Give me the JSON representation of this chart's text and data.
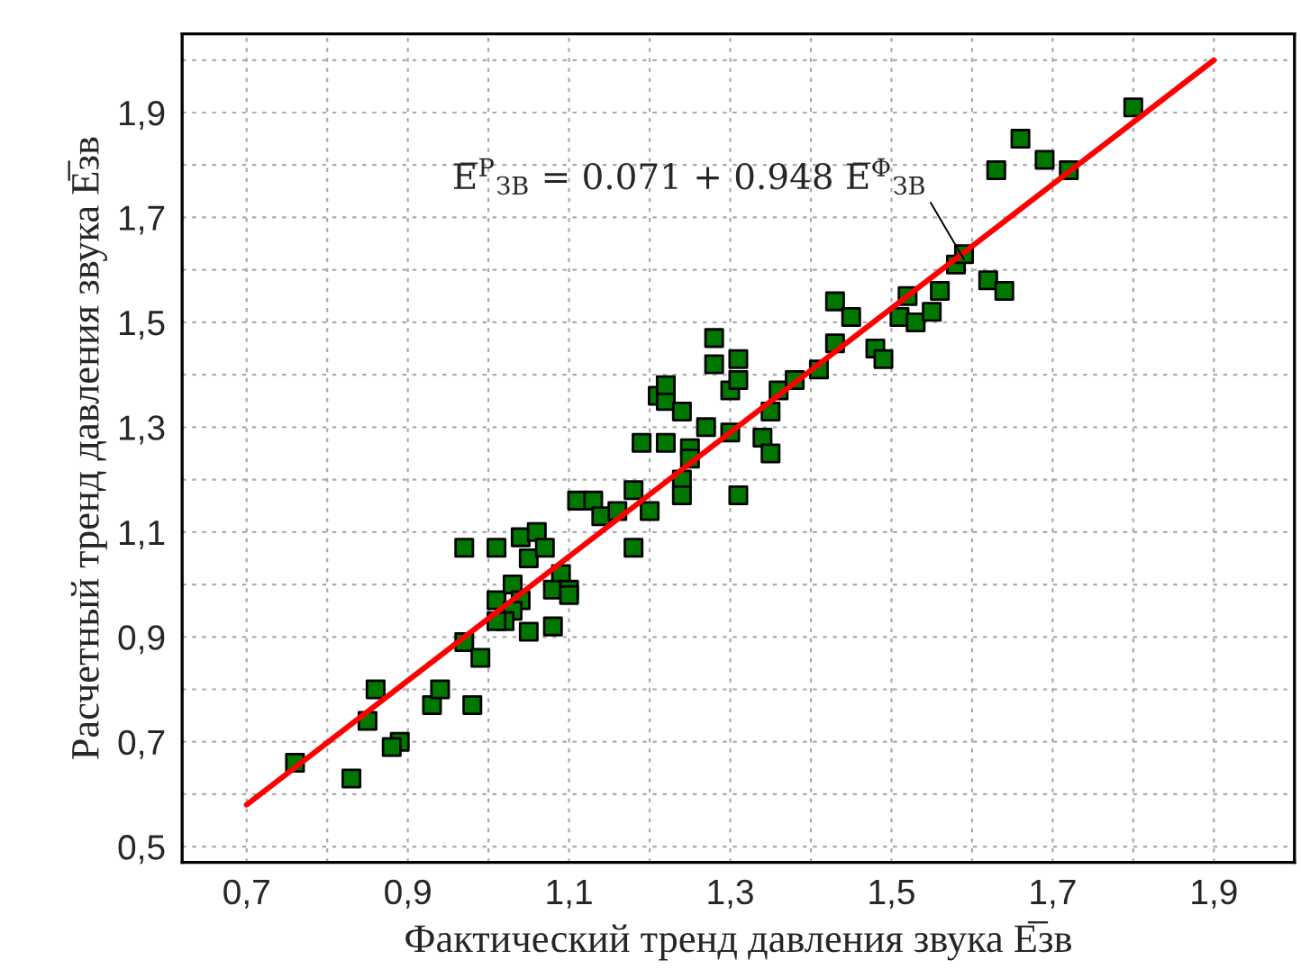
{
  "chart_data": {
    "type": "scatter",
    "xlabel": "Фактический тренд давления звука E̅зв",
    "ylabel": "Расчетный тренд давления звука E̅зв",
    "annotations": [
      {
        "text": "E̅$^{Р}$$_{ЗВ}$ = 0.071 + 0.948 E̅$^{Ф}$$_{ЗВ}$",
        "x": 1.59,
        "y": 1.62
      }
    ],
    "series": [
      {
        "color": "#007800",
        "marker": "square",
        "x": [
          0.76,
          0.83,
          0.85,
          0.86,
          0.89,
          0.88,
          0.93,
          0.94,
          0.98,
          0.97,
          0.99,
          0.97,
          1.01,
          1.04,
          1.06,
          1.05,
          1.07,
          1.09,
          1.08,
          1.1,
          1.1,
          1.01,
          1.03,
          1.04,
          1.03,
          1.02,
          1.01,
          1.05,
          1.08,
          1.11,
          1.13,
          1.14,
          1.16,
          1.18,
          1.2,
          1.18,
          1.19,
          1.22,
          1.21,
          1.22,
          1.22,
          1.24,
          1.25,
          1.25,
          1.24,
          1.24,
          1.27,
          1.3,
          1.31,
          1.28,
          1.28,
          1.3,
          1.31,
          1.31,
          1.34,
          1.35,
          1.35,
          1.36,
          1.38,
          1.41,
          1.43,
          1.45,
          1.43,
          1.48,
          1.49,
          1.51,
          1.52,
          1.53,
          1.55,
          1.56,
          1.58,
          1.59,
          1.62,
          1.64,
          1.63,
          1.66,
          1.69,
          1.72,
          1.8
        ],
        "values": [
          0.66,
          0.63,
          0.74,
          0.8,
          0.7,
          0.69,
          0.77,
          0.8,
          0.77,
          0.89,
          0.86,
          1.07,
          1.07,
          1.09,
          1.1,
          1.05,
          1.07,
          1.02,
          0.99,
          0.99,
          0.98,
          0.97,
          1.0,
          0.97,
          0.95,
          0.93,
          0.93,
          0.91,
          0.92,
          1.16,
          1.16,
          1.13,
          1.14,
          1.18,
          1.14,
          1.07,
          1.27,
          1.27,
          1.36,
          1.35,
          1.38,
          1.33,
          1.26,
          1.24,
          1.2,
          1.17,
          1.3,
          1.29,
          1.17,
          1.47,
          1.42,
          1.37,
          1.43,
          1.39,
          1.28,
          1.25,
          1.33,
          1.37,
          1.39,
          1.41,
          1.54,
          1.51,
          1.46,
          1.45,
          1.43,
          1.51,
          1.55,
          1.5,
          1.52,
          1.56,
          1.61,
          1.63,
          1.58,
          1.56,
          1.79,
          1.85,
          1.81,
          1.79,
          1.91
        ]
      },
      {
        "type": "line",
        "color": "#ff0000",
        "marker": "none",
        "x": [
          0.7,
          1.9
        ],
        "values": [
          0.58,
          2.0
        ]
      }
    ],
    "xlim": [
      0.62,
      2.0
    ],
    "ylim": [
      0.47,
      2.05
    ],
    "xticks": [
      {
        "value": 0.7,
        "label": "0,7"
      },
      {
        "value": 0.8,
        "label": null
      },
      {
        "value": 0.9,
        "label": "0,9"
      },
      {
        "value": 1.0,
        "label": null
      },
      {
        "value": 1.1,
        "label": "1,1"
      },
      {
        "value": 1.2,
        "label": null
      },
      {
        "value": 1.3,
        "label": "1,3"
      },
      {
        "value": 1.4,
        "label": null
      },
      {
        "value": 1.5,
        "label": "1,5"
      },
      {
        "value": 1.6,
        "label": null
      },
      {
        "value": 1.7,
        "label": "1,7"
      },
      {
        "value": 1.8,
        "label": null
      },
      {
        "value": 1.9,
        "label": "1,9"
      },
      {
        "value": 2.0,
        "label": null
      }
    ],
    "yticks": [
      {
        "value": 0.5,
        "label": "0,5"
      },
      {
        "value": 0.6,
        "label": null
      },
      {
        "value": 0.7,
        "label": "0,7"
      },
      {
        "value": 0.8,
        "label": null
      },
      {
        "value": 0.9,
        "label": "0,9"
      },
      {
        "value": 1.0,
        "label": null
      },
      {
        "value": 1.1,
        "label": "1,1"
      },
      {
        "value": 1.2,
        "label": null
      },
      {
        "value": 1.3,
        "label": "1,3"
      },
      {
        "value": 1.4,
        "label": null
      },
      {
        "value": 1.5,
        "label": "1,5"
      },
      {
        "value": 1.6,
        "label": null
      },
      {
        "value": 1.7,
        "label": "1,7"
      },
      {
        "value": 1.8,
        "label": null
      },
      {
        "value": 1.9,
        "label": "1,9"
      },
      {
        "value": 2.0,
        "label": null
      }
    ],
    "grid": true,
    "legend": false
  }
}
